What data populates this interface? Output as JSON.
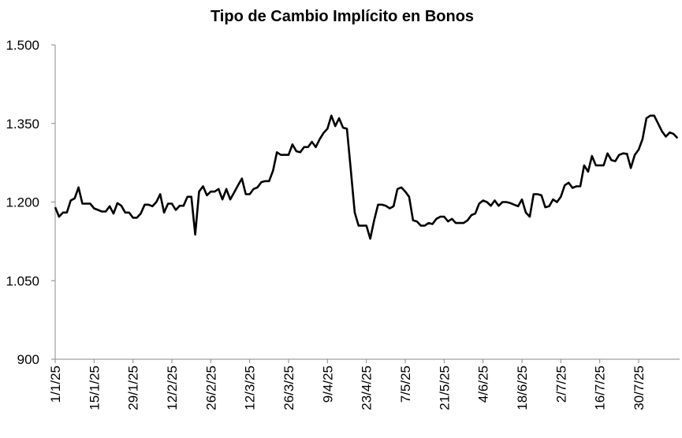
{
  "chart_data": {
    "type": "line",
    "title": "Tipo de Cambio Implícito en Bonos",
    "categories": [
      "1/1/25",
      null,
      null,
      null,
      null,
      null,
      null,
      null,
      null,
      null,
      "15/1/25",
      null,
      null,
      null,
      null,
      null,
      null,
      null,
      null,
      null,
      "29/1/25",
      null,
      null,
      null,
      null,
      null,
      null,
      null,
      null,
      null,
      "12/2/25",
      null,
      null,
      null,
      null,
      null,
      null,
      null,
      null,
      null,
      "26/2/25",
      null,
      null,
      null,
      null,
      null,
      null,
      null,
      null,
      null,
      "12/3/25",
      null,
      null,
      null,
      null,
      null,
      null,
      null,
      null,
      null,
      "26/3/25",
      null,
      null,
      null,
      null,
      null,
      null,
      null,
      null,
      null,
      "9/4/25",
      null,
      null,
      null,
      null,
      null,
      null,
      null,
      null,
      null,
      "23/4/25",
      null,
      null,
      null,
      null,
      null,
      null,
      null,
      null,
      null,
      "7/5/25",
      null,
      null,
      null,
      null,
      null,
      null,
      null,
      null,
      null,
      "21/5/25",
      null,
      null,
      null,
      null,
      null,
      null,
      null,
      null,
      null,
      "4/6/25",
      null,
      null,
      null,
      null,
      null,
      null,
      null,
      null,
      null,
      "18/6/25",
      null,
      null,
      null,
      null,
      null,
      null,
      null,
      null,
      null,
      "2/7/25",
      null,
      null,
      null,
      null,
      null,
      null,
      null,
      null,
      null,
      "16/7/25",
      null,
      null,
      null,
      null,
      null,
      null,
      null,
      null,
      null,
      "30/7/25",
      null,
      null,
      null,
      null,
      null,
      null,
      null,
      null,
      null,
      null
    ],
    "values": [
      1190,
      1172,
      1180,
      1180,
      1203,
      1207,
      1228,
      1197,
      1197,
      1197,
      1188,
      1185,
      1182,
      1182,
      1192,
      1178,
      1198,
      1193,
      1180,
      1180,
      1170,
      1170,
      1178,
      1195,
      1195,
      1192,
      1200,
      1215,
      1180,
      1197,
      1197,
      1185,
      1193,
      1193,
      1210,
      1210,
      1138,
      1220,
      1230,
      1213,
      1220,
      1220,
      1225,
      1205,
      1225,
      1205,
      1218,
      1232,
      1245,
      1215,
      1215,
      1225,
      1228,
      1238,
      1240,
      1240,
      1260,
      1295,
      1290,
      1290,
      1290,
      1310,
      1297,
      1295,
      1305,
      1305,
      1315,
      1305,
      1320,
      1332,
      1340,
      1365,
      1345,
      1360,
      1342,
      1340,
      1262,
      1180,
      1155,
      1155,
      1155,
      1130,
      1165,
      1195,
      1195,
      1193,
      1188,
      1192,
      1225,
      1228,
      1220,
      1210,
      1165,
      1163,
      1155,
      1155,
      1160,
      1158,
      1168,
      1172,
      1172,
      1163,
      1168,
      1160,
      1160,
      1160,
      1165,
      1175,
      1178,
      1197,
      1203,
      1200,
      1193,
      1203,
      1193,
      1200,
      1200,
      1198,
      1195,
      1192,
      1205,
      1180,
      1172,
      1215,
      1215,
      1213,
      1190,
      1192,
      1205,
      1200,
      1210,
      1232,
      1237,
      1227,
      1230,
      1230,
      1270,
      1258,
      1288,
      1270,
      1270,
      1270,
      1293,
      1280,
      1278,
      1290,
      1293,
      1292,
      1265,
      1290,
      1300,
      1320,
      1360,
      1365,
      1365,
      1350,
      1335,
      1325,
      1333,
      1330,
      1322
    ],
    "color": "#000000",
    "ylim": [
      900,
      1500
    ],
    "yticks": [
      900,
      {
        "value": 1050,
        "label": "1.050"
      },
      {
        "value": 1200,
        "label": "1.200"
      },
      {
        "value": 1350,
        "label": "1.350"
      },
      {
        "value": 1500,
        "label": "1.500"
      }
    ],
    "grid": false
  }
}
